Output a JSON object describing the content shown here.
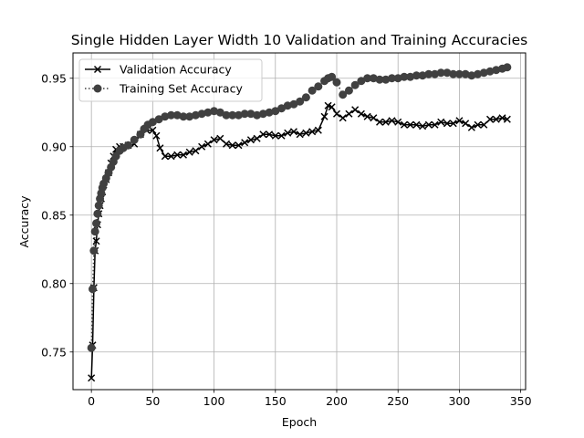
{
  "chart_data": {
    "type": "line",
    "title": "Single Hidden Layer Width 10 Validation and Training Accuracies",
    "xlabel": "Epoch",
    "ylabel": "Accuracy",
    "xlim": [
      -15,
      354
    ],
    "ylim": [
      0.7225,
      0.9685
    ],
    "xticks": [
      0,
      50,
      100,
      150,
      200,
      250,
      300,
      350
    ],
    "yticks": [
      0.75,
      0.8,
      0.85,
      0.9,
      0.95
    ],
    "xtick_labels": [
      "0",
      "50",
      "100",
      "150",
      "200",
      "250",
      "300",
      "350"
    ],
    "ytick_labels": [
      "0.75",
      "0.80",
      "0.85",
      "0.90",
      "0.95"
    ],
    "grid": true,
    "legend_position": "top-left",
    "colors": {
      "validation": "#000000",
      "training": "#404040",
      "grid": "#b0b0b0"
    },
    "series": [
      {
        "name": "Validation Accuracy",
        "style": "solid",
        "marker": "x",
        "x": [
          0,
          1,
          2,
          3,
          4,
          5,
          6,
          7,
          8,
          9,
          10,
          12,
          14,
          16,
          18,
          20,
          23,
          26,
          30,
          35,
          40,
          45,
          50,
          53,
          56,
          60,
          65,
          70,
          75,
          80,
          85,
          90,
          95,
          100,
          105,
          110,
          115,
          120,
          125,
          130,
          135,
          140,
          145,
          150,
          155,
          160,
          165,
          170,
          175,
          180,
          185,
          190,
          193,
          196,
          200,
          205,
          210,
          215,
          220,
          225,
          230,
          235,
          240,
          245,
          250,
          255,
          260,
          265,
          270,
          275,
          280,
          285,
          290,
          295,
          300,
          305,
          310,
          315,
          320,
          325,
          330,
          335,
          339
        ],
        "y": [
          0.731,
          0.755,
          0.797,
          0.824,
          0.831,
          0.843,
          0.851,
          0.857,
          0.862,
          0.867,
          0.872,
          0.876,
          0.881,
          0.888,
          0.893,
          0.898,
          0.9,
          0.9,
          0.901,
          0.902,
          0.909,
          0.912,
          0.912,
          0.908,
          0.899,
          0.893,
          0.893,
          0.894,
          0.894,
          0.896,
          0.897,
          0.9,
          0.902,
          0.905,
          0.906,
          0.902,
          0.901,
          0.901,
          0.903,
          0.905,
          0.906,
          0.909,
          0.909,
          0.908,
          0.908,
          0.91,
          0.911,
          0.909,
          0.91,
          0.911,
          0.912,
          0.922,
          0.93,
          0.929,
          0.924,
          0.921,
          0.924,
          0.927,
          0.924,
          0.922,
          0.921,
          0.918,
          0.918,
          0.919,
          0.918,
          0.916,
          0.916,
          0.916,
          0.915,
          0.916,
          0.916,
          0.918,
          0.917,
          0.917,
          0.919,
          0.917,
          0.914,
          0.916,
          0.916,
          0.92,
          0.92,
          0.921,
          0.92
        ]
      },
      {
        "name": "Training Set Accuracy",
        "style": "dotted",
        "marker": "o",
        "x": [
          0,
          1,
          2,
          3,
          4,
          5,
          6,
          7,
          8,
          9,
          10,
          12,
          14,
          16,
          18,
          20,
          23,
          26,
          30,
          35,
          40,
          43,
          46,
          50,
          55,
          60,
          65,
          70,
          75,
          80,
          85,
          90,
          95,
          100,
          105,
          110,
          115,
          120,
          125,
          130,
          135,
          140,
          145,
          150,
          155,
          160,
          165,
          170,
          175,
          180,
          185,
          190,
          193,
          196,
          200,
          205,
          210,
          215,
          220,
          225,
          230,
          235,
          240,
          245,
          250,
          255,
          260,
          265,
          270,
          275,
          280,
          285,
          290,
          295,
          300,
          305,
          310,
          315,
          320,
          325,
          330,
          335,
          339
        ],
        "y": [
          0.753,
          0.796,
          0.824,
          0.838,
          0.844,
          0.851,
          0.857,
          0.862,
          0.866,
          0.87,
          0.873,
          0.877,
          0.881,
          0.885,
          0.889,
          0.893,
          0.897,
          0.899,
          0.901,
          0.905,
          0.909,
          0.913,
          0.916,
          0.918,
          0.92,
          0.922,
          0.923,
          0.923,
          0.922,
          0.922,
          0.923,
          0.924,
          0.925,
          0.926,
          0.925,
          0.923,
          0.923,
          0.923,
          0.924,
          0.924,
          0.923,
          0.924,
          0.925,
          0.926,
          0.928,
          0.93,
          0.931,
          0.933,
          0.936,
          0.941,
          0.944,
          0.948,
          0.95,
          0.951,
          0.947,
          0.938,
          0.941,
          0.945,
          0.948,
          0.95,
          0.95,
          0.949,
          0.949,
          0.95,
          0.95,
          0.951,
          0.951,
          0.952,
          0.952,
          0.953,
          0.953,
          0.954,
          0.954,
          0.953,
          0.953,
          0.953,
          0.952,
          0.953,
          0.954,
          0.955,
          0.956,
          0.957,
          0.958
        ]
      }
    ]
  }
}
